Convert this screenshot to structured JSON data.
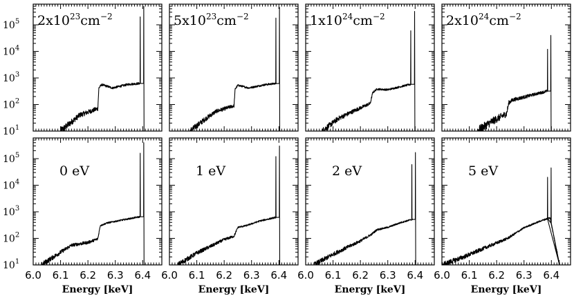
{
  "chart_data": {
    "type": "line",
    "layout": "2x4 grid of spectra",
    "xlabel": "Energy [keV]",
    "xlim": [
      6.0,
      6.47
    ],
    "x_ticks": [
      "6.0",
      "6.1",
      "6.2",
      "6.3",
      "6.4"
    ],
    "ylim": [
      10,
      600000
    ],
    "y_scale": "log",
    "y_ticks": [
      {
        "base": "10",
        "exp": "1"
      },
      {
        "base": "10",
        "exp": "2"
      },
      {
        "base": "10",
        "exp": "3"
      },
      {
        "base": "10",
        "exp": "4"
      },
      {
        "base": "10",
        "exp": "5"
      }
    ],
    "grid": false,
    "panels": [
      {
        "label_main": "2x10",
        "label_sup": "23",
        "label_unit": "cm",
        "label_unit_sup": "−2",
        "row": 0,
        "continuum": [
          [
            6.1,
            10
          ],
          [
            6.17,
            40
          ],
          [
            6.236,
            70
          ],
          [
            6.24,
            420
          ],
          [
            6.25,
            560
          ],
          [
            6.29,
            420
          ],
          [
            6.35,
            580
          ],
          [
            6.39,
            620
          ]
        ],
        "noise": 0.14,
        "lines": [
          {
            "x": 6.391,
            "peak": 200000
          },
          {
            "x": 6.404,
            "peak": 500000
          }
        ]
      },
      {
        "label_main": "5x10",
        "label_sup": "23",
        "label_unit": "cm",
        "label_unit_sup": "−2",
        "row": 0,
        "continuum": [
          [
            6.075,
            10
          ],
          [
            6.13,
            28
          ],
          [
            6.17,
            55
          ],
          [
            6.236,
            90
          ],
          [
            6.24,
            380
          ],
          [
            6.25,
            530
          ],
          [
            6.29,
            420
          ],
          [
            6.35,
            560
          ],
          [
            6.39,
            620
          ]
        ],
        "noise": 0.12,
        "lines": [
          {
            "x": 6.389,
            "peak": 180000
          },
          {
            "x": 6.402,
            "peak": 450000
          }
        ]
      },
      {
        "label_main": "1x10",
        "label_sup": "24",
        "label_unit": "cm",
        "label_unit_sup": "−2",
        "row": 0,
        "continuum": [
          [
            6.06,
            10
          ],
          [
            6.12,
            30
          ],
          [
            6.18,
            60
          ],
          [
            6.236,
            110
          ],
          [
            6.245,
            280
          ],
          [
            6.26,
            380
          ],
          [
            6.3,
            360
          ],
          [
            6.35,
            480
          ],
          [
            6.385,
            580
          ]
        ],
        "noise": 0.12,
        "lines": [
          {
            "x": 6.384,
            "peak": 60000
          },
          {
            "x": 6.398,
            "peak": 320000
          }
        ]
      },
      {
        "label_main": "2x10",
        "label_sup": "24",
        "label_unit": "cm",
        "label_unit_sup": "−2",
        "row": 0,
        "continuum": [
          [
            6.13,
            10
          ],
          [
            6.18,
            22
          ],
          [
            6.236,
            45
          ],
          [
            6.245,
            120
          ],
          [
            6.26,
            150
          ],
          [
            6.3,
            190
          ],
          [
            6.35,
            260
          ],
          [
            6.385,
            320
          ]
        ],
        "noise": 0.18,
        "lines": [
          {
            "x": 6.386,
            "peak": 12000
          },
          {
            "x": 6.398,
            "peak": 40000
          }
        ]
      },
      {
        "label_main": "0 eV",
        "row": 1,
        "continuum": [
          [
            6.03,
            10
          ],
          [
            6.1,
            30
          ],
          [
            6.14,
            55
          ],
          [
            6.2,
            70
          ],
          [
            6.236,
            95
          ],
          [
            6.245,
            300
          ],
          [
            6.27,
            380
          ],
          [
            6.33,
            500
          ],
          [
            6.39,
            650
          ]
        ],
        "noise": 0.1,
        "lines": [
          {
            "x": 6.391,
            "peak": 160000
          },
          {
            "x": 6.404,
            "peak": 400000
          }
        ]
      },
      {
        "label_main": "1 eV",
        "row": 1,
        "continuum": [
          [
            6.03,
            10
          ],
          [
            6.1,
            28
          ],
          [
            6.15,
            50
          ],
          [
            6.2,
            90
          ],
          [
            6.236,
            120
          ],
          [
            6.25,
            260
          ],
          [
            6.28,
            300
          ],
          [
            6.33,
            450
          ],
          [
            6.39,
            620
          ]
        ],
        "noise": 0.1,
        "lines": [
          {
            "x": 6.389,
            "peak": 120000
          },
          {
            "x": 6.402,
            "peak": 300000
          }
        ]
      },
      {
        "label_main": "2 eV",
        "row": 1,
        "continuum": [
          [
            6.03,
            10
          ],
          [
            6.1,
            25
          ],
          [
            6.15,
            45
          ],
          [
            6.2,
            80
          ],
          [
            6.24,
            140
          ],
          [
            6.26,
            210
          ],
          [
            6.3,
            260
          ],
          [
            6.35,
            400
          ],
          [
            6.39,
            520
          ]
        ],
        "noise": 0.1,
        "lines": [
          {
            "x": 6.388,
            "peak": 60000
          },
          {
            "x": 6.401,
            "peak": 170000
          }
        ]
      },
      {
        "label_main": "5 eV",
        "row": 1,
        "continuum": [
          [
            6.0,
            10
          ],
          [
            6.08,
            20
          ],
          [
            6.16,
            45
          ],
          [
            6.24,
            100
          ],
          [
            6.3,
            250
          ],
          [
            6.36,
            450
          ],
          [
            6.395,
            600
          ],
          [
            6.43,
            10
          ]
        ],
        "noise": 0.1,
        "lines": [
          {
            "x": 6.386,
            "peak": 20000
          },
          {
            "x": 6.399,
            "peak": 45000
          }
        ]
      }
    ]
  }
}
